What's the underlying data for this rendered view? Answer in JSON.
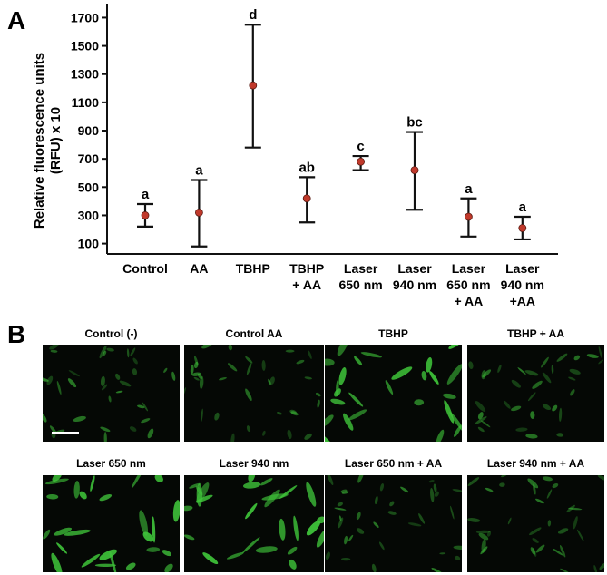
{
  "panel_a": {
    "letter": "A"
  },
  "panel_b": {
    "letter": "B"
  },
  "chart_data": {
    "type": "scatter",
    "ylabel_lines": [
      "Relative fluorescence units",
      "(RFU) x 10"
    ],
    "ylim": [
      0,
      1750
    ],
    "yticks": [
      100,
      300,
      500,
      700,
      900,
      1100,
      1300,
      1500,
      1700
    ],
    "ytick_labels": [
      "100",
      "300",
      "500",
      "700",
      "900",
      "1100",
      "1300",
      "1500",
      "1700"
    ],
    "categories": [
      [
        "Control"
      ],
      [
        "AA"
      ],
      [
        "TBHP"
      ],
      [
        "TBHP",
        "+ AA"
      ],
      [
        "Laser",
        "650 nm"
      ],
      [
        "Laser",
        "940 nm"
      ],
      [
        "Laser",
        "650 nm",
        "+ AA"
      ],
      [
        "Laser",
        "940 nm",
        "+AA"
      ]
    ],
    "series": [
      {
        "values": [
          300,
          320,
          1220,
          420,
          680,
          620,
          290,
          210
        ],
        "error_low": [
          220,
          80,
          780,
          250,
          620,
          340,
          150,
          130
        ],
        "error_high": [
          380,
          550,
          1650,
          570,
          720,
          890,
          420,
          290
        ],
        "significance": [
          "a",
          "a",
          "d",
          "ab",
          "c",
          "bc",
          "a",
          "a"
        ]
      }
    ],
    "marker_color": "#c0392b",
    "grid": false
  },
  "images": [
    {
      "title": "Control (-)"
    },
    {
      "title": "Control AA"
    },
    {
      "title": "TBHP"
    },
    {
      "title": "TBHP + AA"
    },
    {
      "title": "Laser  650 nm"
    },
    {
      "title": "Laser  940 nm"
    },
    {
      "title": "Laser  650 nm + AA"
    },
    {
      "title": "Laser  940 nm + AA"
    }
  ],
  "colors": {
    "micrograph_background": "#050805",
    "cell_green": "#3fc43a",
    "marker": "#c0392b"
  }
}
